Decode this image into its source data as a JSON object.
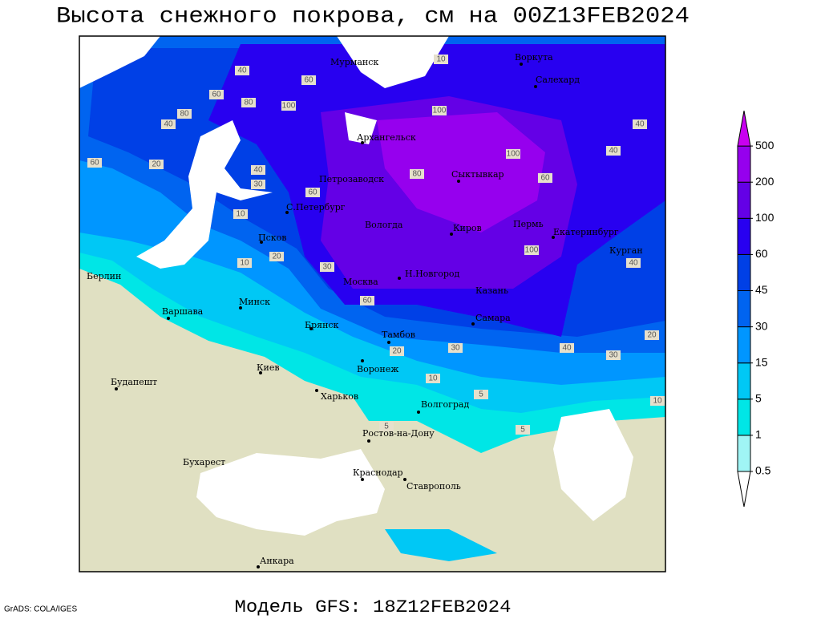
{
  "title": "Высота снежного покрова, см на 00Z13FEB2024",
  "model": "Модель GFS: 18Z12FEB2024",
  "credit": "GrADS: COLA/IGES",
  "colorbar": {
    "levels": [
      0.5,
      1,
      5,
      15,
      30,
      45,
      60,
      100,
      200,
      500
    ],
    "colors": [
      "#a0f5f5",
      "#00e6e6",
      "#00c8f5",
      "#0096ff",
      "#0064f0",
      "#0040e6",
      "#2800f0",
      "#6400e6",
      "#9600ee"
    ],
    "under_color": "#ffffff",
    "over_color": "#c800f0"
  },
  "cities": [
    "Мурманск",
    "Воркута",
    "Салехард",
    "Архангельск",
    "Сыктывкар",
    "Петрозаводск",
    "С.Петербург",
    "Вологда",
    "Киров",
    "Пермь",
    "Екатеринбург",
    "Курган",
    "Псков",
    "Москва",
    "Н.Новгород",
    "Казань",
    "Самара",
    "Берлин",
    "Варшава",
    "Минск",
    "Брянск",
    "Тамбов",
    "Воронеж",
    "Киев",
    "Будапешт",
    "Харьков",
    "Волгоград",
    "Ростов-на-Дону",
    "Бухарест",
    "Краснодар",
    "Ставрополь",
    "Анкара"
  ],
  "contour_labels": [
    10,
    40,
    60,
    80,
    100,
    40,
    60,
    80,
    100,
    40,
    60,
    20,
    30,
    40,
    60,
    80,
    100,
    40,
    60,
    30,
    20,
    10,
    5,
    10,
    20,
    30,
    5,
    5,
    10,
    40,
    60,
    100,
    30,
    20,
    10,
    40
  ]
}
